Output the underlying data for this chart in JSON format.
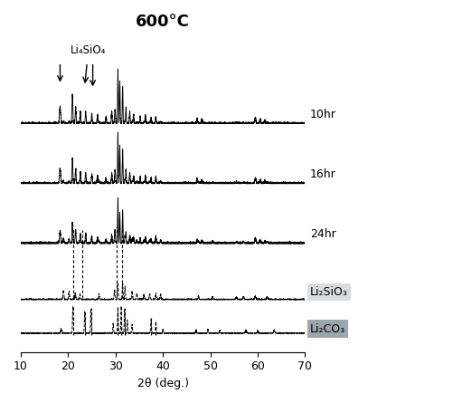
{
  "title": "600°C",
  "xlabel": "2θ (deg.)",
  "xlim": [
    10,
    70
  ],
  "x_ticks": [
    10,
    20,
    30,
    40,
    50,
    60,
    70
  ],
  "labels": [
    "10hr",
    "16hr",
    "24hr",
    "Li₂SiO₃",
    "Li₂CO₃"
  ],
  "annotation_label": "Li₄SiO₄",
  "background_color": "#ffffff",
  "title_fontsize": 13,
  "label_fontsize": 9,
  "axis_fontsize": 9,
  "offsets": [
    2.8,
    2.0,
    1.2,
    0.45,
    0.0
  ],
  "scale": 0.38
}
